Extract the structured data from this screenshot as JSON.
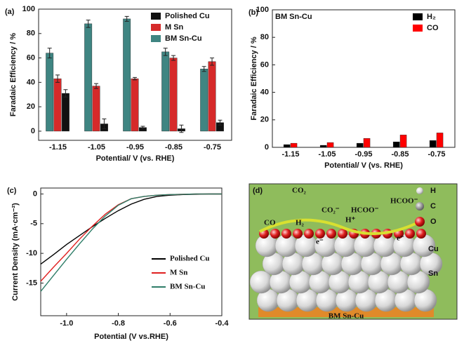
{
  "chart_data": [
    {
      "type": "bar",
      "label": "(a)",
      "y_label": "Faradaic Efficiency / %",
      "x_label": "Potential/ V (vs. RHE)",
      "categories": [
        "-1.15",
        "-1.05",
        "-0.95",
        "-0.85",
        "-0.75"
      ],
      "series": [
        {
          "name": "BM Sn-Cu",
          "color": "#3f8582",
          "values": [
            64,
            88,
            92,
            65,
            51
          ],
          "errors": [
            4,
            3,
            2,
            3,
            2
          ]
        },
        {
          "name": "M Sn",
          "color": "#d62a2a",
          "values": [
            43,
            37,
            43,
            60,
            57
          ],
          "errors": [
            3,
            2,
            1,
            2,
            3
          ]
        },
        {
          "name": "Polished Cu",
          "color": "#111111",
          "values": [
            31,
            6,
            3,
            2,
            7
          ],
          "errors": [
            3,
            4,
            1,
            3,
            2
          ]
        }
      ],
      "legend_order": [
        2,
        1,
        0
      ],
      "legend_position": "upper right",
      "ylim": [
        -7.5,
        100
      ],
      "yticks": [
        0,
        20,
        40,
        60,
        80,
        100
      ]
    },
    {
      "type": "bar",
      "label": "(b)",
      "annotation": "BM Sn-Cu",
      "y_label": "Faradaic Efficiency / %",
      "x_label": "Potential/ V (vs. RHE)",
      "categories": [
        "-1.15",
        "-1.05",
        "-0.95",
        "-0.85",
        "-0.75"
      ],
      "series": [
        {
          "name": "H₂",
          "color": "#000000",
          "values": [
            2,
            1.5,
            3,
            4,
            5
          ]
        },
        {
          "name": "CO",
          "color": "#ff0000",
          "values": [
            3,
            3.5,
            6.5,
            9,
            10.5
          ]
        }
      ],
      "legend_order": [
        0,
        1
      ],
      "legend_position": "upper right",
      "ylim": [
        0,
        100
      ],
      "yticks": [
        0,
        20,
        40,
        60,
        80,
        100
      ]
    },
    {
      "type": "line",
      "label": "(c)",
      "y_label": "Current Density (mA·cm⁻²)",
      "x_label": "Potential (V vs.RHE)",
      "x": [
        -1.1,
        -1.05,
        -1.0,
        -0.95,
        -0.9,
        -0.85,
        -0.8,
        -0.75,
        -0.7,
        -0.65,
        -0.6,
        -0.55,
        -0.5,
        -0.45,
        -0.4
      ],
      "series": [
        {
          "name": "Polished Cu",
          "color": "#000000",
          "values": [
            -11.8,
            -10.2,
            -8.5,
            -7.0,
            -5.5,
            -4.1,
            -2.8,
            -1.7,
            -0.9,
            -0.4,
            -0.2,
            -0.1,
            -0.05,
            0,
            0
          ]
        },
        {
          "name": "M Sn",
          "color": "#e02020",
          "values": [
            -14.7,
            -12.3,
            -10,
            -7.6,
            -5.4,
            -3.4,
            -1.8,
            -0.8,
            -0.4,
            -0.2,
            -0.1,
            -0.05,
            0,
            0,
            0
          ]
        },
        {
          "name": "BM Sn-Cu",
          "color": "#2e7d68",
          "values": [
            -16.4,
            -13.7,
            -11,
            -8.4,
            -5.9,
            -3.7,
            -1.9,
            -0.8,
            -0.4,
            -0.2,
            -0.1,
            -0.05,
            0,
            0,
            0
          ]
        }
      ],
      "legend_order": [
        0,
        1,
        2
      ],
      "legend_position": "center right",
      "xlim": [
        -1.1,
        -0.4
      ],
      "xticks": [
        {
          "value": -1.0,
          "label": "-1.0"
        },
        -0.8,
        -0.6,
        -0.4
      ],
      "ylim": [
        -20.5,
        1
      ],
      "yticks": [
        0,
        -5,
        -10,
        -15
      ]
    }
  ],
  "diagram": {
    "label": "(d)",
    "legend": [
      "H",
      "C",
      "O"
    ],
    "layers": [
      "Cu",
      "Sn"
    ],
    "base": "BM Sn-Cu",
    "molecules": [
      "CO₂",
      "CO₂⁻",
      "HCOO⁻",
      "HCOO⁻",
      "H⁺",
      "CO",
      "H₂",
      "e⁻",
      "e⁻"
    ]
  }
}
